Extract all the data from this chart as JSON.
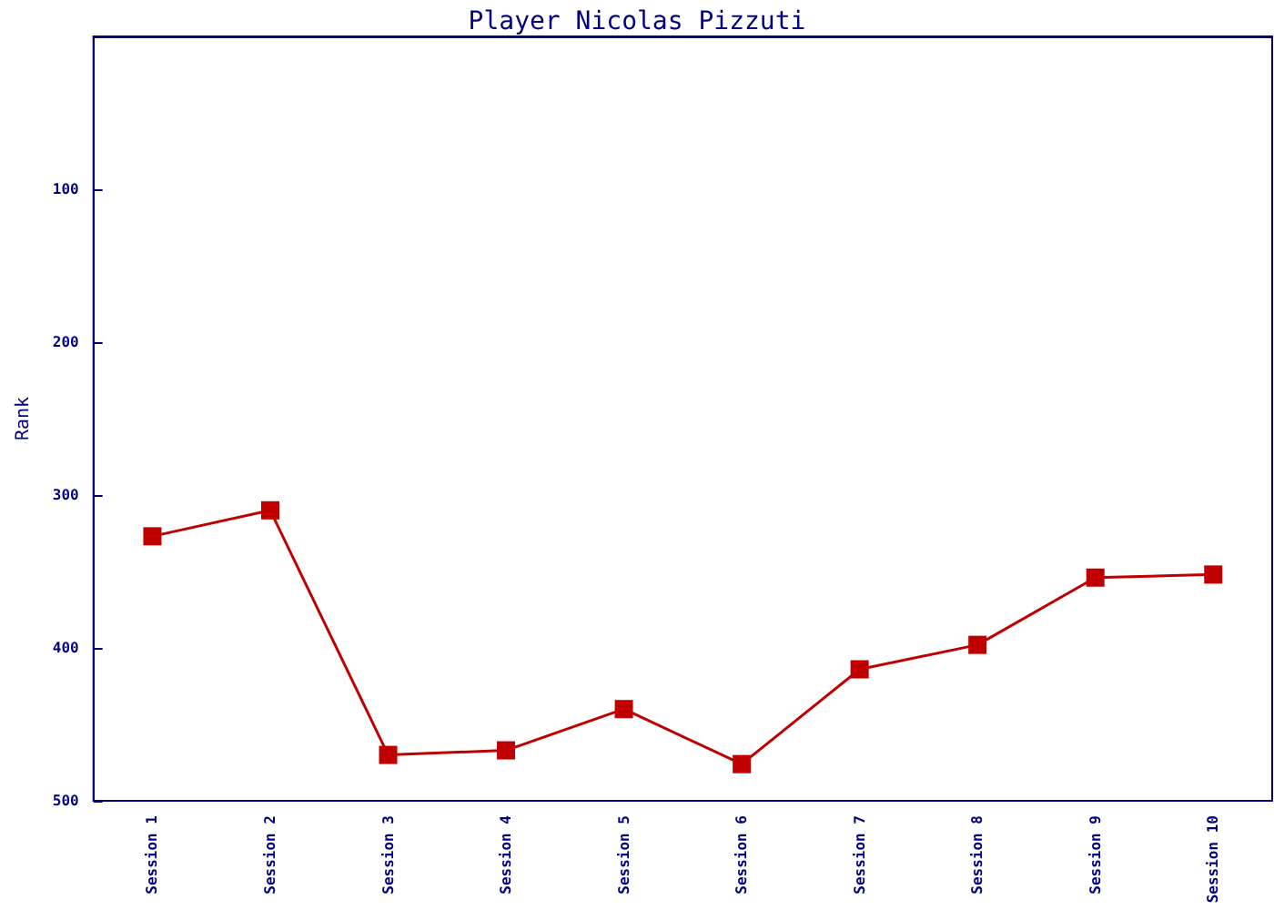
{
  "chart_data": {
    "type": "line",
    "title": "Player Nicolas Pizzuti",
    "ylabel": "Rank",
    "categories": [
      "Session 1",
      "Session 2",
      "Session 3",
      "Session 4",
      "Session 5",
      "Session 6",
      "Session 7",
      "Session 8",
      "Session 9",
      "Session 10"
    ],
    "series": [
      {
        "color": "#c00000",
        "values": [
          327,
          310,
          470,
          467,
          440,
          476,
          414,
          398,
          354,
          352
        ]
      }
    ],
    "ylim": [
      500,
      0
    ],
    "yticks": [
      100,
      200,
      300,
      400,
      500
    ],
    "grid": false,
    "marker": "square",
    "line_style": "solid"
  }
}
